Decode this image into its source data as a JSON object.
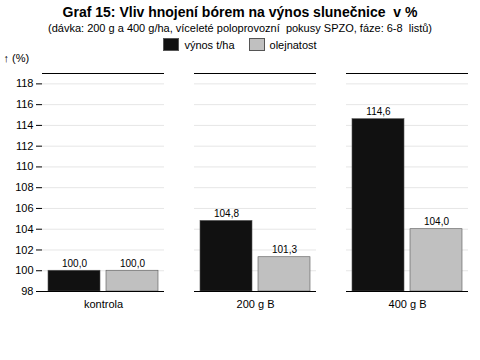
{
  "chart_data": {
    "type": "bar",
    "title": "Graf 15: Vliv hnojení bórem na výnos slunečnice  v %",
    "subtitle": "(dávka: 200 g a 400 g/ha, víceleté poloprovozní  pokusy SPZO, fáze: 6-8  listů)",
    "categories": [
      "kontrola",
      "200 g B",
      "400 g B"
    ],
    "series": [
      {
        "name": "výnos t/ha",
        "color": "#111111",
        "values": [
          100.0,
          104.8,
          114.6
        ],
        "value_labels": [
          "100,0",
          "104,8",
          "114,6"
        ]
      },
      {
        "name": "olejnatost",
        "color": "#c0c0c0",
        "values": [
          100.0,
          101.3,
          104.0
        ],
        "value_labels": [
          "100,0",
          "101,3",
          "104,0"
        ]
      }
    ],
    "ylabel": "(%)",
    "ylim": [
      98,
      119
    ],
    "yticks": [
      98,
      100,
      102,
      104,
      106,
      108,
      110,
      112,
      114,
      116,
      118
    ],
    "grid": true,
    "legend": "upper center",
    "data_labels": true
  }
}
